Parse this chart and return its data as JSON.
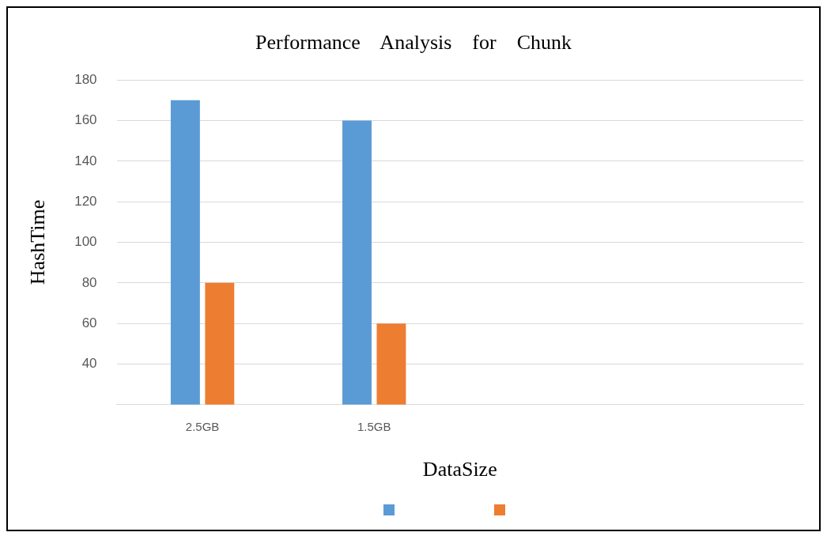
{
  "chart_data": {
    "type": "bar",
    "title": "Performance    Analysis    for    Chunk",
    "xlabel": "DataSize",
    "ylabel": "HashTime",
    "categories": [
      "2.5GB",
      "1.5GB",
      null,
      null
    ],
    "series": [
      {
        "color": "#5b9bd5",
        "values": [
          170,
          160,
          null,
          null
        ]
      },
      {
        "color": "#ed7d31",
        "values": [
          80,
          60,
          null,
          null
        ]
      }
    ],
    "ylim": [
      20,
      180
    ],
    "yticks": [
      {
        "value": 20,
        "label": null
      },
      40,
      60,
      80,
      100,
      120,
      140,
      160,
      180
    ],
    "grid": "y"
  }
}
